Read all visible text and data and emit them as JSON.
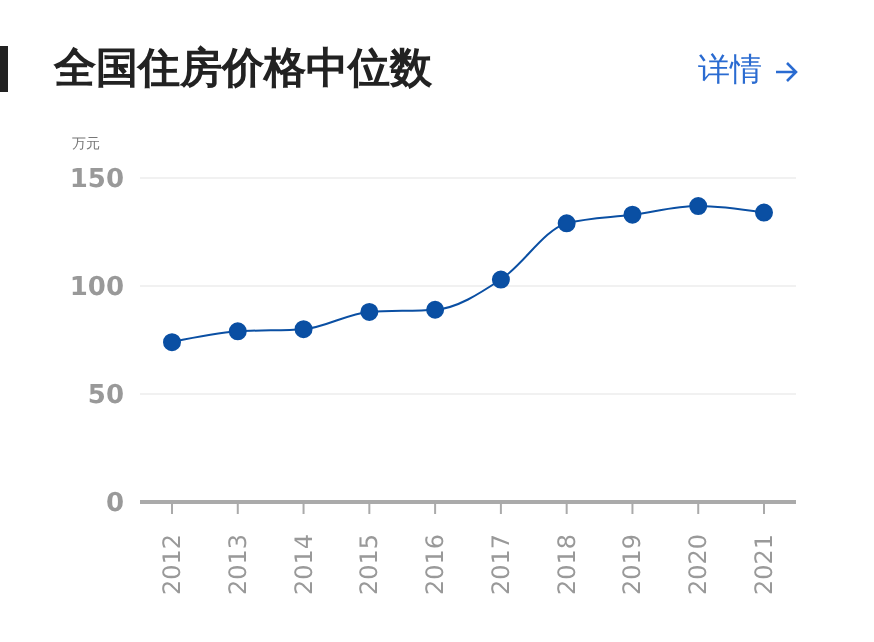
{
  "chart_data": {
    "type": "line",
    "title": "全国住房价格中位数",
    "ylabel": "万元",
    "annotations": [
      "详情"
    ],
    "categories": [
      "2012",
      "2013",
      "2014",
      "2015",
      "2016",
      "2017",
      "2018",
      "2019",
      "2020",
      "2021"
    ],
    "series": [
      {
        "color": "#0a4fa3",
        "values": [
          74,
          79,
          80,
          88,
          89,
          103,
          129,
          133,
          137,
          134
        ]
      }
    ],
    "ylim": [
      0,
      150
    ],
    "yticks": [
      0,
      50,
      100,
      150
    ],
    "grid": "y",
    "marker": "circle",
    "line_style": "solid",
    "legend": false
  }
}
